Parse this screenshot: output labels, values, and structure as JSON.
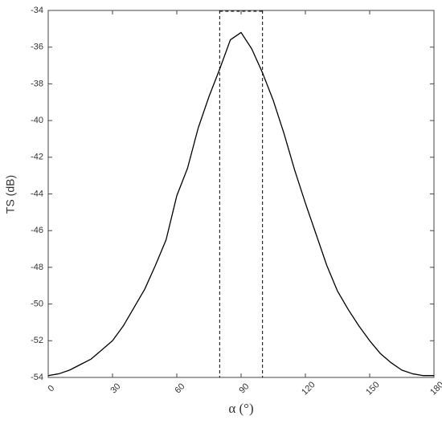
{
  "chart_data": {
    "type": "line",
    "x_label": "α (°)",
    "y_label": "TS (dB)",
    "x": [
      0,
      5,
      10,
      15,
      20,
      25,
      30,
      35,
      40,
      45,
      50,
      55,
      60,
      65,
      70,
      75,
      80,
      85,
      90,
      95,
      100,
      105,
      110,
      115,
      120,
      125,
      130,
      135,
      140,
      145,
      150,
      155,
      160,
      165,
      170,
      175,
      180
    ],
    "series": [
      {
        "color": "#000000",
        "values": [
          -53.9,
          -53.8,
          -53.6,
          -53.3,
          -53.0,
          -52.5,
          -52.0,
          -51.2,
          -50.2,
          -49.2,
          -47.9,
          -46.5,
          -44.1,
          -42.6,
          -40.4,
          -38.7,
          -37.2,
          -35.6,
          -35.2,
          -36.1,
          -37.4,
          -38.9,
          -40.7,
          -42.7,
          -44.5,
          -46.2,
          -47.9,
          -49.3,
          -50.3,
          -51.2,
          -52.0,
          -52.7,
          -53.2,
          -53.6,
          -53.8,
          -53.9,
          -53.9
        ]
      }
    ],
    "reference_lines": {
      "x": [
        80,
        100
      ],
      "color": "#000000"
    },
    "xlim": [
      0,
      180
    ],
    "xticks": [
      0,
      30,
      60,
      90,
      120,
      150,
      180
    ],
    "ylim": [
      -54,
      -34
    ],
    "yticks": [
      -54,
      -52,
      -50,
      -48,
      -46,
      -44,
      -42,
      -40,
      -38,
      -36,
      -34
    ],
    "grid": false
  }
}
